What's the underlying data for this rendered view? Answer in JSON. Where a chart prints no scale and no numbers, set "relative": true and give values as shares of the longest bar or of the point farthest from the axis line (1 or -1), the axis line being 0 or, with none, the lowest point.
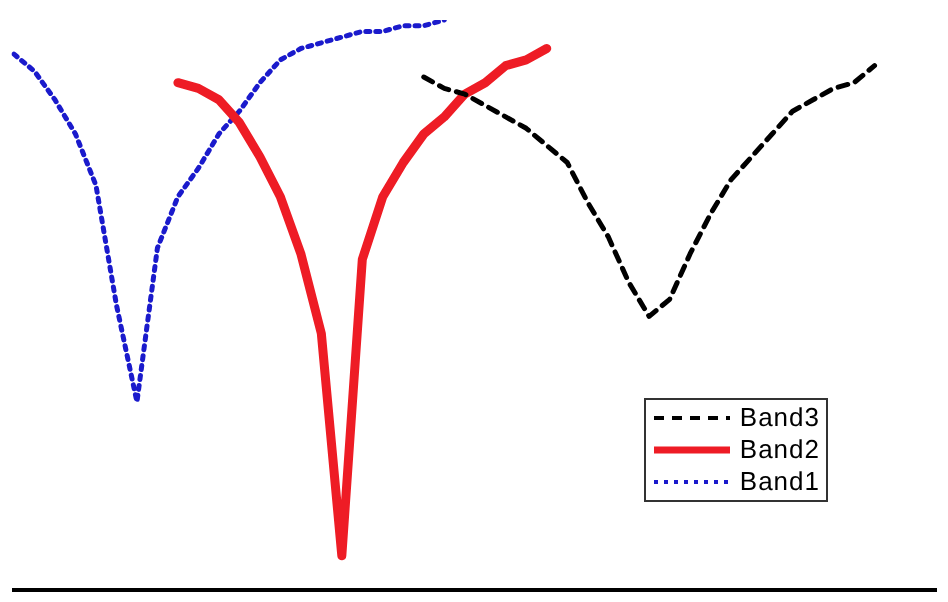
{
  "chart_data": {
    "type": "line",
    "relative": true,
    "tick_labels": false,
    "legend": "bottom right",
    "grid": false,
    "categories": [
      null,
      null,
      null,
      null,
      null,
      null,
      null,
      null,
      null,
      null,
      null,
      null,
      null,
      null,
      null,
      null,
      null,
      null,
      null,
      null,
      null,
      null,
      null,
      null,
      null,
      null,
      null,
      null,
      null,
      null,
      null,
      null,
      null,
      null,
      null,
      null,
      null,
      null,
      null,
      null,
      null,
      null,
      null,
      null,
      null,
      null
    ],
    "series": [
      {
        "name": "Band3",
        "color": "#000000",
        "line_style": "dashed",
        "values": [
          null,
          null,
          null,
          null,
          null,
          null,
          null,
          null,
          null,
          null,
          null,
          null,
          null,
          null,
          null,
          null,
          null,
          null,
          null,
          null,
          0.9,
          0.88,
          0.87,
          0.85,
          0.83,
          0.81,
          0.78,
          0.75,
          0.68,
          0.62,
          0.54,
          0.48,
          0.51,
          0.59,
          0.66,
          0.72,
          0.76,
          0.8,
          0.84,
          0.86,
          0.88,
          0.89,
          0.92,
          null,
          null,
          null
        ]
      },
      {
        "name": "Band2",
        "color": "#ee1c25",
        "line_style": "solid",
        "values": [
          null,
          null,
          null,
          null,
          null,
          null,
          null,
          null,
          0.89,
          0.88,
          0.86,
          0.82,
          0.76,
          0.69,
          0.59,
          0.45,
          0.06,
          0.58,
          0.69,
          0.75,
          0.8,
          0.83,
          0.87,
          0.89,
          0.92,
          0.93,
          0.95,
          null,
          null,
          null,
          null,
          null,
          null,
          null,
          null,
          null,
          null,
          null,
          null,
          null,
          null,
          null,
          null,
          null,
          null,
          null
        ]
      },
      {
        "name": "Band1",
        "color": "#1a1acc",
        "line_style": "dotted",
        "values": [
          0.94,
          0.91,
          0.86,
          0.8,
          0.71,
          0.5,
          0.33,
          0.6,
          0.69,
          0.74,
          0.8,
          0.84,
          0.89,
          0.93,
          0.95,
          0.96,
          0.97,
          0.98,
          0.98,
          0.99,
          0.99,
          1,
          null,
          null,
          null,
          null,
          null,
          null,
          null,
          null,
          null,
          null,
          null,
          null,
          null,
          null,
          null,
          null,
          null,
          null,
          null,
          null,
          null,
          null,
          null,
          null
        ]
      }
    ]
  }
}
